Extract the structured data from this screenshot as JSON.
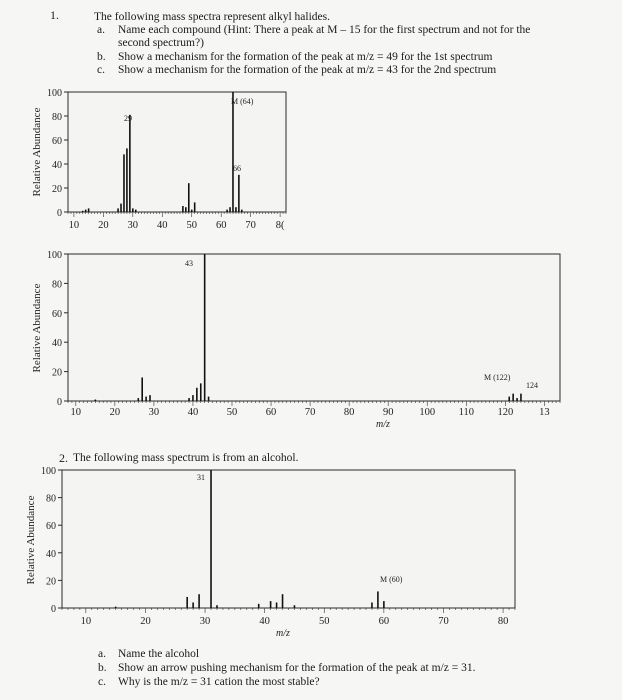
{
  "q1": {
    "number": "1.",
    "intro": "The following mass spectra represent alkyl halides.",
    "items": [
      {
        "letter": "a.",
        "line1": "Name each compound (Hint: There a peak at M – 15 for the first spectrum and not for the",
        "line2": "second spectrum?)"
      },
      {
        "letter": "b.",
        "line1": "Show a mechanism for the formation of the peak at m/z = 49 for the 1st spectrum"
      },
      {
        "letter": "c.",
        "line1": "Show a mechanism for the formation of the peak at m/z = 43 for the 2nd spectrum"
      }
    ]
  },
  "q2": {
    "number": "2.",
    "intro": "The following mass spectrum is from an alcohol.",
    "items": [
      {
        "letter": "a.",
        "text": "Name the alcohol"
      },
      {
        "letter": "b.",
        "text": "Show an arrow pushing mechanism for the formation of the peak at m/z = 31."
      },
      {
        "letter": "c.",
        "text": "Why is the m/z = 31 cation the most stable?"
      }
    ]
  },
  "chart_data": [
    {
      "type": "bar",
      "ylabel": "Relative Abundance",
      "xlabel": "",
      "xlim": [
        8,
        82
      ],
      "ylim": [
        0,
        100
      ],
      "xticks": [
        "10",
        "20",
        "30",
        "40",
        "50",
        "60",
        "70",
        "8("
      ],
      "yticks": [
        "0",
        "20",
        "40",
        "60",
        "80",
        "100"
      ],
      "x": [
        13,
        14,
        15,
        25,
        26,
        27,
        28,
        29,
        30,
        31,
        47,
        48,
        49,
        50,
        51,
        62,
        63,
        64,
        65,
        66,
        67
      ],
      "values": [
        1,
        2,
        3,
        3,
        7,
        48,
        53,
        81,
        3,
        2,
        5,
        4,
        24,
        2,
        8,
        2,
        4,
        100,
        4,
        31,
        2
      ],
      "annotations": [
        "M (64)",
        "29",
        "66"
      ]
    },
    {
      "type": "bar",
      "ylabel": "Relative Abundance",
      "xlabel": "m/z",
      "xlim": [
        8,
        134
      ],
      "ylim": [
        0,
        100
      ],
      "xticks": [
        "10",
        "20",
        "30",
        "40",
        "50",
        "60",
        "70",
        "80",
        "90",
        "100",
        "110",
        "120",
        "13"
      ],
      "yticks": [
        "0",
        "20",
        "40",
        "60",
        "80",
        "100"
      ],
      "x": [
        15,
        26,
        27,
        28,
        29,
        39,
        40,
        41,
        42,
        43,
        44,
        121,
        122,
        123,
        124
      ],
      "values": [
        1,
        2,
        16,
        3,
        4,
        2,
        4,
        9,
        12,
        100,
        3,
        3,
        5,
        2,
        5
      ],
      "annotations": [
        "43",
        "M (122)",
        "124"
      ]
    },
    {
      "type": "bar",
      "ylabel": "Relative Abundance",
      "xlabel": "m/z",
      "xlim": [
        6,
        82
      ],
      "ylim": [
        0,
        100
      ],
      "xticks": [
        "10",
        "20",
        "30",
        "40",
        "50",
        "60",
        "70",
        "80"
      ],
      "yticks": [
        "0",
        "20",
        "40",
        "60",
        "80",
        "100"
      ],
      "x": [
        15,
        27,
        28,
        29,
        31,
        32,
        39,
        41,
        42,
        43,
        45,
        58,
        59,
        60
      ],
      "values": [
        1,
        8,
        4,
        10,
        100,
        2,
        3,
        5,
        4,
        10,
        2,
        4,
        12,
        5
      ],
      "annotations": [
        "31",
        "M (60)"
      ]
    }
  ]
}
